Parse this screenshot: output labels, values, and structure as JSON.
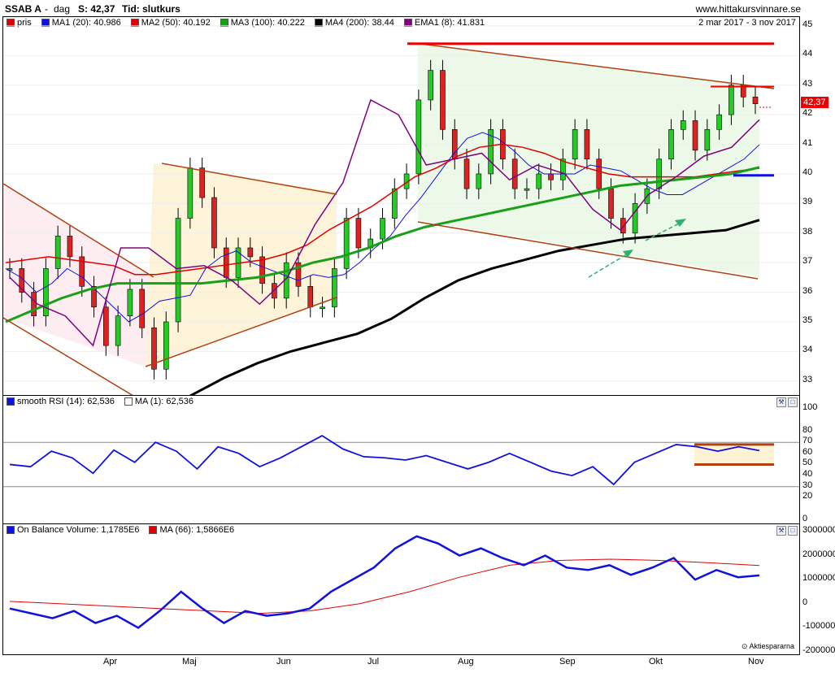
{
  "header": {
    "ticker": "SSAB A",
    "sep": "-",
    "period": "dag",
    "last_label": "S: 42,37",
    "time_label": "Tid: slutkurs",
    "site": "www.hittakursvinnare.se"
  },
  "price_panel": {
    "date_range": "2 mar 2017 - 3 nov 2017",
    "current_price_tag": "42,37",
    "legend": [
      {
        "label": "pris",
        "color": "#e00000"
      },
      {
        "label": "MA1 (20): 40,986",
        "color": "#1010e0"
      },
      {
        "label": "MA2 (50): 40,192",
        "color": "#e00000"
      },
      {
        "label": "MA3 (100): 40,222",
        "color": "#18a018"
      },
      {
        "label": "MA4 (200): 38,44",
        "color": "#000000"
      },
      {
        "label": "EMA1 (8): 41,831",
        "color": "#800080"
      }
    ],
    "yticks": [
      "45",
      "44",
      "43",
      "42",
      "41",
      "40",
      "39",
      "38",
      "37",
      "36",
      "35",
      "34",
      "33"
    ]
  },
  "rsi_panel": {
    "legend": [
      {
        "label": "smooth RSI (14): 62,536",
        "color": "#1010e0"
      },
      {
        "label": "MA (1): 62,536",
        "color": "#ffffff"
      }
    ],
    "yticks": [
      "100",
      "80",
      "70",
      "60",
      "50",
      "40",
      "30",
      "20",
      "0"
    ]
  },
  "obv_panel": {
    "legend": [
      {
        "label": "On Balance Volume: 1,1785E6",
        "color": "#1010e0"
      },
      {
        "label": "MA (66): 1,5866E6",
        "color": "#e00000"
      }
    ],
    "yticks": [
      "3000000",
      "2000000",
      "1000000",
      "0",
      "-1000000",
      "-2000000"
    ]
  },
  "xaxis": [
    "Apr",
    "Maj",
    "Jun",
    "Jul",
    "Aug",
    "Sep",
    "Okt",
    "Nov"
  ],
  "credit": "Aktiespararna",
  "chart_data": [
    {
      "type": "line",
      "title": "SSAB A",
      "xlabel": "",
      "ylabel": "",
      "ylim": [
        32.5,
        45.3
      ],
      "x_range": [
        "2017-03-02",
        "2017-11-03"
      ],
      "series": [
        {
          "name": "pris",
          "color": "#e00000",
          "values": [
            36.8,
            36.0,
            35.2,
            36.8,
            37.9,
            37.2,
            36.2,
            35.5,
            34.2,
            35.2,
            36.1,
            34.8,
            33.4,
            35.0,
            38.5,
            40.2,
            39.2,
            37.5,
            36.5,
            37.5,
            37.2,
            36.3,
            35.8,
            37.0,
            36.2,
            35.5,
            35.5,
            36.8,
            38.5,
            37.5,
            37.8,
            38.5,
            39.5,
            40.0,
            42.5,
            43.5,
            41.5,
            40.5,
            39.5,
            40.0,
            41.5,
            40.5,
            39.5,
            39.5,
            40.0,
            39.8,
            40.5,
            41.5,
            40.5,
            39.5,
            38.5,
            38.0,
            39.0,
            39.5,
            40.5,
            41.5,
            41.8,
            40.8,
            41.5,
            42.0,
            43.0,
            42.6,
            42.37
          ]
        },
        {
          "name": "MA1 (20)",
          "color": "#1010e0",
          "values": [
            36.8,
            36.5,
            36.0,
            36.3,
            36.8,
            36.5,
            36.0,
            35.5,
            35.0,
            35.3,
            35.7,
            35.8,
            35.9,
            36.8,
            37.2,
            37.4,
            37.0,
            36.8,
            36.6,
            36.4,
            36.6,
            36.5,
            36.6,
            37.0,
            37.5,
            37.9,
            38.6,
            39.2,
            39.9,
            40.6,
            41.2,
            41.4,
            41.2,
            40.8,
            40.3,
            40.0,
            40.0,
            40.0,
            40.3,
            40.2,
            40.1,
            39.8,
            39.5,
            39.3,
            39.3,
            39.6,
            39.9,
            40.2,
            40.5,
            40.986
          ]
        },
        {
          "name": "MA2 (50)",
          "color": "#e00000",
          "values": [
            37.0,
            37.1,
            37.2,
            37.1,
            37.0,
            36.9,
            36.6,
            36.6,
            36.7,
            36.8,
            36.9,
            37.0,
            37.1,
            37.3,
            37.6,
            38.1,
            38.5,
            38.9,
            39.4,
            39.9,
            40.2,
            40.6,
            40.9,
            41.0,
            40.9,
            40.7,
            40.4,
            40.2,
            40.0,
            39.9,
            39.9,
            39.9,
            39.9,
            40.0,
            40.1,
            40.192
          ]
        },
        {
          "name": "MA3 (100)",
          "color": "#18a018",
          "values": [
            35.0,
            35.4,
            35.8,
            36.1,
            36.3,
            36.3,
            36.3,
            36.3,
            36.4,
            36.5,
            36.7,
            37.0,
            37.2,
            37.5,
            37.9,
            38.2,
            38.4,
            38.6,
            38.8,
            39.0,
            39.2,
            39.4,
            39.6,
            39.7,
            39.8,
            39.9,
            40.0,
            40.222
          ]
        },
        {
          "name": "MA4 (200)",
          "color": "#000000",
          "values": [
            32.5,
            33.1,
            33.6,
            34.0,
            34.3,
            34.6,
            35.1,
            35.8,
            36.4,
            36.8,
            37.1,
            37.4,
            37.6,
            37.8,
            37.9,
            38.0,
            38.1,
            38.44
          ]
        },
        {
          "name": "EMA1 (8)",
          "color": "#800080",
          "values": [
            36.5,
            35.6,
            35.2,
            34.2,
            37.5,
            37.5,
            36.8,
            36.9,
            36.4,
            35.6,
            36.5,
            38.3,
            39.7,
            42.5,
            42.0,
            40.3,
            40.5,
            40.7,
            39.8,
            40.3,
            40.0,
            38.8,
            38.1,
            39.3,
            39.9,
            40.6,
            40.9,
            41.831
          ]
        }
      ]
    },
    {
      "type": "line",
      "title": "smooth RSI (14)",
      "ylim": [
        0,
        100
      ],
      "series": [
        {
          "name": "smooth RSI (14)",
          "color": "#1010e0",
          "values": [
            50,
            48,
            62,
            56,
            42,
            63,
            52,
            70,
            62,
            46,
            66,
            60,
            48,
            56,
            66,
            76,
            64,
            57,
            56,
            54,
            58,
            52,
            46,
            52,
            60,
            52,
            44,
            40,
            48,
            32,
            52,
            60,
            68,
            66,
            62,
            66,
            62.536
          ]
        }
      ]
    },
    {
      "type": "line",
      "title": "On Balance Volume",
      "ylim": [
        -2000000,
        3000000
      ],
      "series": [
        {
          "name": "On Balance Volume",
          "color": "#1010e0",
          "values": [
            -200000,
            -400000,
            -600000,
            -300000,
            -800000,
            -500000,
            -1000000,
            -300000,
            500000,
            -200000,
            -800000,
            -300000,
            -500000,
            -400000,
            -200000,
            500000,
            1000000,
            1500000,
            2300000,
            2800000,
            2500000,
            2000000,
            2300000,
            1900000,
            1600000,
            2000000,
            1500000,
            1400000,
            1600000,
            1200000,
            1500000,
            1900000,
            1000000,
            1400000,
            1100000,
            1178500
          ]
        },
        {
          "name": "MA (66)",
          "color": "#e00000",
          "values": [
            100000,
            0,
            -100000,
            -200000,
            -300000,
            -400000,
            -300000,
            0,
            500000,
            1100000,
            1600000,
            1800000,
            1850000,
            1800000,
            1700000,
            1586600
          ]
        }
      ]
    }
  ]
}
